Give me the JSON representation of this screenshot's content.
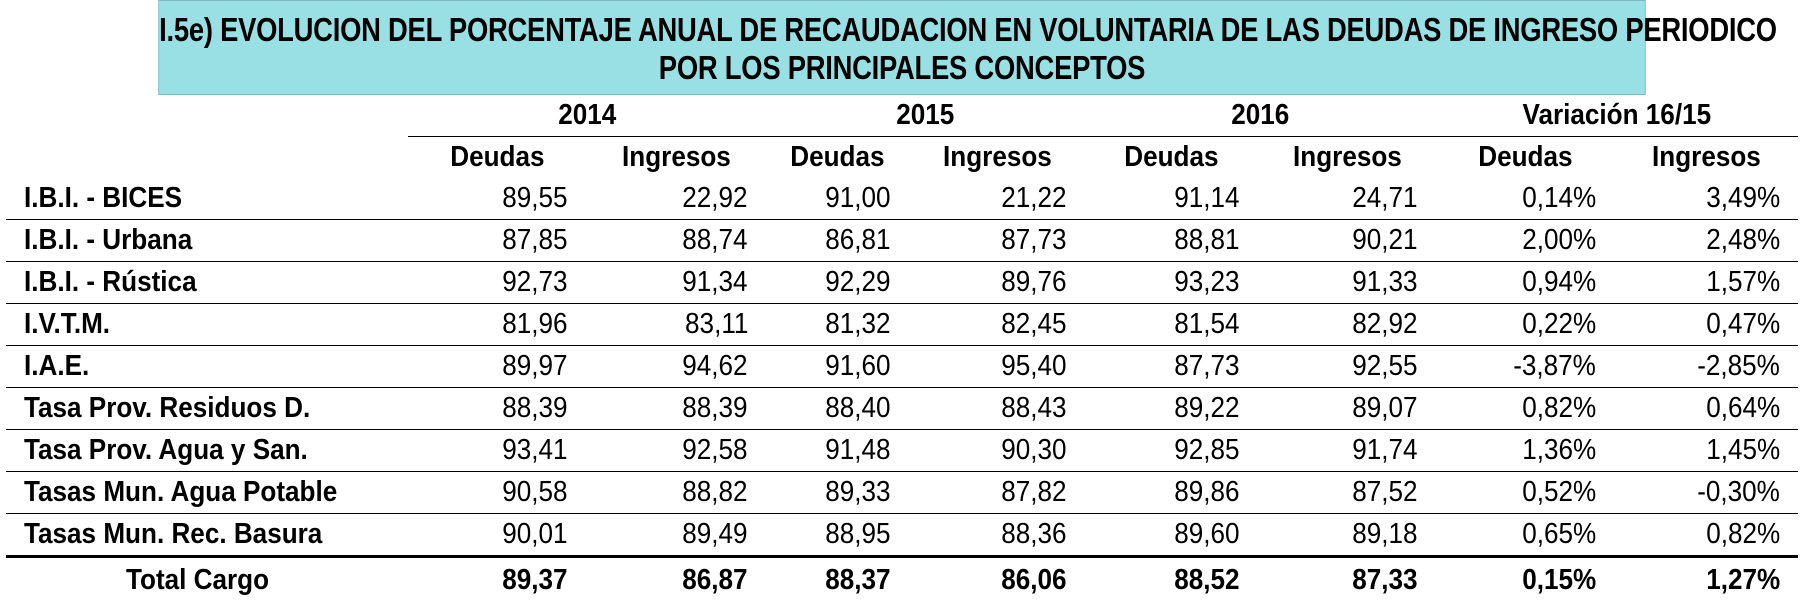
{
  "title": {
    "line1": "I.5e) EVOLUCION DEL PORCENTAJE ANUAL DE RECAUDACION EN VOLUNTARIA DE LAS DEUDAS DE INGRESO PERIODICO",
    "line2": "POR LOS PRINCIPALES CONCEPTOS",
    "background": "#99e0e5"
  },
  "table": {
    "year_headers": [
      "2014",
      "2015",
      "2016",
      "Variación 16/15"
    ],
    "sub_headers": [
      "Deudas",
      "Ingresos",
      "Deudas",
      "Ingresos",
      "Deudas",
      "Ingresos",
      "Deudas",
      "Ingresos"
    ],
    "rows": [
      {
        "label": "I.B.I. - BICES",
        "values": [
          "89,55",
          "22,92",
          "91,00",
          "21,22",
          "91,14",
          "24,71",
          "0,14%",
          "3,49%"
        ]
      },
      {
        "label": "I.B.I. - Urbana",
        "values": [
          "87,85",
          "88,74",
          "86,81",
          "87,73",
          "88,81",
          "90,21",
          "2,00%",
          "2,48%"
        ]
      },
      {
        "label": "I.B.I. - Rústica",
        "values": [
          "92,73",
          "91,34",
          "92,29",
          "89,76",
          "93,23",
          "91,33",
          "0,94%",
          "1,57%"
        ]
      },
      {
        "label": "I.V.T.M.",
        "values": [
          "81,96",
          "83,11",
          "81,32",
          "82,45",
          "81,54",
          "82,92",
          "0,22%",
          "0,47%"
        ]
      },
      {
        "label": "I.A.E.",
        "values": [
          "89,97",
          "94,62",
          "91,60",
          "95,40",
          "87,73",
          "92,55",
          "-3,87%",
          "-2,85%"
        ]
      },
      {
        "label": "Tasa Prov. Residuos D.",
        "values": [
          "88,39",
          "88,39",
          "88,40",
          "88,43",
          "89,22",
          "89,07",
          "0,82%",
          "0,64%"
        ]
      },
      {
        "label": "Tasa Prov. Agua y San.",
        "values": [
          "93,41",
          "92,58",
          "91,48",
          "90,30",
          "92,85",
          "91,74",
          "1,36%",
          "1,45%"
        ]
      },
      {
        "label": "Tasas Mun. Agua Potable",
        "values": [
          "90,58",
          "88,82",
          "89,33",
          "87,82",
          "89,86",
          "87,52",
          "0,52%",
          "-0,30%"
        ]
      },
      {
        "label": "Tasas Mun. Rec. Basura",
        "values": [
          "90,01",
          "89,49",
          "88,95",
          "88,36",
          "89,60",
          "89,18",
          "0,65%",
          "0,82%"
        ]
      }
    ],
    "total": {
      "label": "Total Cargo",
      "values": [
        "89,37",
        "86,87",
        "88,37",
        "86,06",
        "88,52",
        "87,33",
        "0,15%",
        "1,27%"
      ]
    }
  }
}
